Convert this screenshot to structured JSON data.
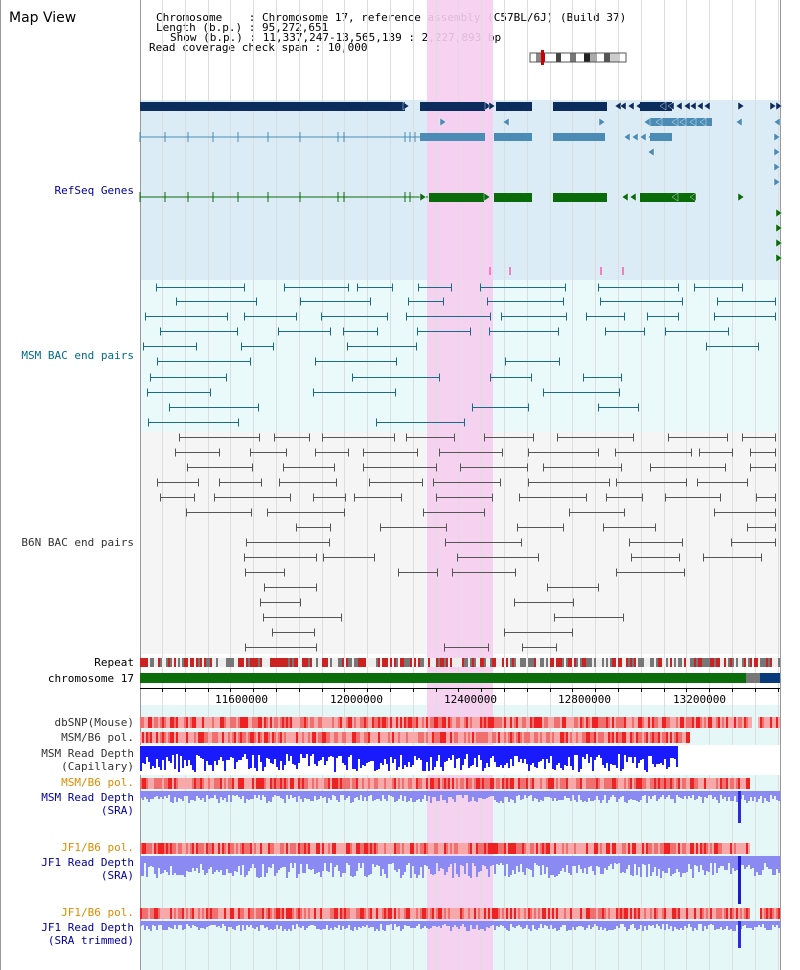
{
  "page": {
    "title": "Map View"
  },
  "header": {
    "chromosome_label": "Chromosome    : ",
    "chromosome_value": "Chromosome 17, reference assembly (C57BL/6J) (Build 37)",
    "length_label": "Length (b.p.) : ",
    "length_value": "95,272,651",
    "show_label": "Show (b.p.) : ",
    "show_value": "11,337,247-13,565,139 : 2,227,893 bp",
    "coverage_label": "Read coverage check span : ",
    "coverage_value": "10,000"
  },
  "tracks": {
    "refseq": {
      "label": "RefSeq Genes",
      "color": "#00009c"
    },
    "msm_bac": {
      "label": "MSM BAC end pairs",
      "color": "#006a8a"
    },
    "b6n_bac": {
      "label": "B6N BAC end pairs",
      "color": "#333333"
    },
    "repeat": {
      "label": "Repeat",
      "color": "#000000"
    },
    "chromosome": {
      "label": "chromosome 17",
      "color": "#000000"
    },
    "dbsnp": {
      "label": "dbSNP(Mouse)",
      "color": "#333333"
    },
    "msm_b6_pol_1": {
      "label": "MSM/B6 pol.",
      "color": "#333333"
    },
    "msm_depth_cap": {
      "label": "MSM Read Depth\n(Capillary)",
      "color": "#333333"
    },
    "msm_b6_pol_2": {
      "label": "MSM/B6 pol.",
      "color": "#e08a00"
    },
    "msm_depth_sra": {
      "label": "MSM Read Depth\n(SRA)",
      "color": "#00009c"
    },
    "jf1_b6_pol_1": {
      "label": "JF1/B6 pol.",
      "color": "#e08a00"
    },
    "jf1_depth_sra": {
      "label": "JF1 Read Depth\n(SRA)",
      "color": "#00009c"
    },
    "jf1_b6_pol_2": {
      "label": "JF1/B6 pol.",
      "color": "#e08a00"
    },
    "jf1_depth_trim": {
      "label": "JF1 Read Depth\n(SRA trimmed)",
      "color": "#00009c"
    }
  },
  "axis": {
    "ticks": [
      "11600000",
      "12000000",
      "12400000",
      "12800000",
      "13200000"
    ]
  },
  "colors": {
    "highlight": "#f7cdf0",
    "refseq_bg": "#dcecf6",
    "msm_bg": "#eaf9f9",
    "b6n_bg": "#f5f5f5",
    "gene_dark": "#0d2c5e",
    "gene_mid": "#4a8cb5",
    "gene_green": "#0a6b0a",
    "msm_line": "#1a6b8a",
    "b6n_line": "#555555",
    "chrom_green": "#0b6d0b",
    "depth_dark": "#1a1aff",
    "depth_light": "#8a8af2"
  }
}
